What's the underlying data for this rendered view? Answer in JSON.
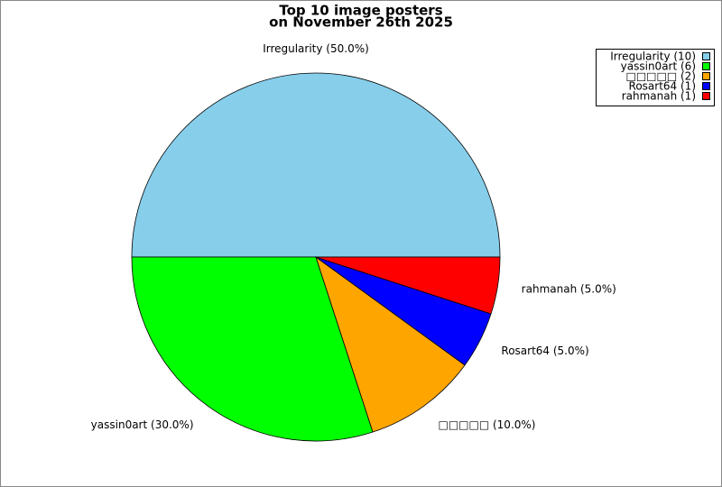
{
  "chart_data": {
    "type": "pie",
    "title": "Top 10 image posters",
    "subtitle": "on November 26th 2025",
    "categories": [
      "Irregularity",
      "yassin0art",
      "□□□□□",
      "Rosart64",
      "rahmanah"
    ],
    "values": [
      50,
      30,
      10,
      5,
      5
    ],
    "value_labels": [
      "Irregularity (50.0%)",
      "yassin0art (30.0%)",
      "□□□□□ (10.0%)",
      "Rosart64 (5.0%)",
      "rahmanah (5.0%)"
    ],
    "legend_labels": [
      "Irregularity (10)",
      "yassin0art (6)",
      "□□□□□ (2)",
      "Rosart64 (1)",
      "rahmanah (1)"
    ],
    "colors": [
      "#87ceeb",
      "#00ff00",
      "#ffa500",
      "#0000ff",
      "#ff0000"
    ],
    "legend": "upper right"
  }
}
